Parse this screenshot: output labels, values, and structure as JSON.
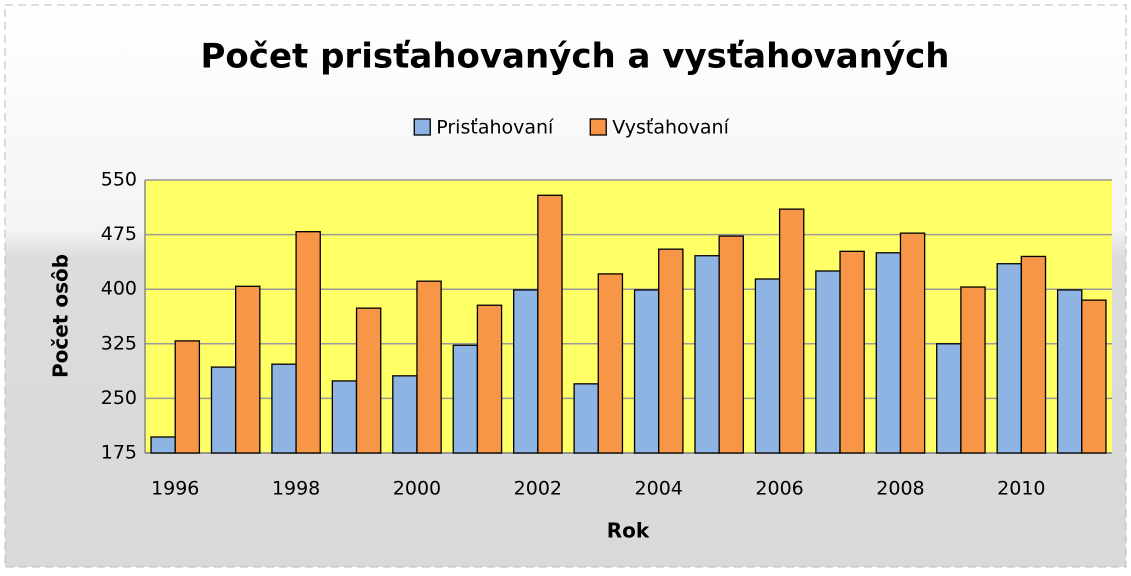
{
  "chart_data": {
    "type": "bar",
    "title": "Počet prisťahovaných a vysťahovaných",
    "x_label": "Rok",
    "y_label": "Počet osôb",
    "categories": [
      "1996",
      null,
      "1998",
      null,
      "2000",
      null,
      "2002",
      null,
      "2004",
      null,
      "2006",
      null,
      "2008",
      null,
      "2010",
      null
    ],
    "series": [
      {
        "name": "Prisťahovaní",
        "color": "#8db4e2",
        "values": [
          197,
          293,
          297,
          274,
          281,
          323,
          399,
          270,
          399,
          446,
          414,
          425,
          450,
          325,
          435,
          399
        ]
      },
      {
        "name": "Vysťahovaní",
        "color": "#f79646",
        "values": [
          329,
          404,
          479,
          374,
          411,
          378,
          529,
          421,
          455,
          473,
          510,
          452,
          477,
          403,
          445,
          385
        ]
      }
    ],
    "ylim": [
      175,
      550
    ],
    "yticks": [
      175,
      250,
      325,
      400,
      475,
      550
    ],
    "grid": true,
    "legend": "top",
    "plot_background": "#ffff66"
  }
}
